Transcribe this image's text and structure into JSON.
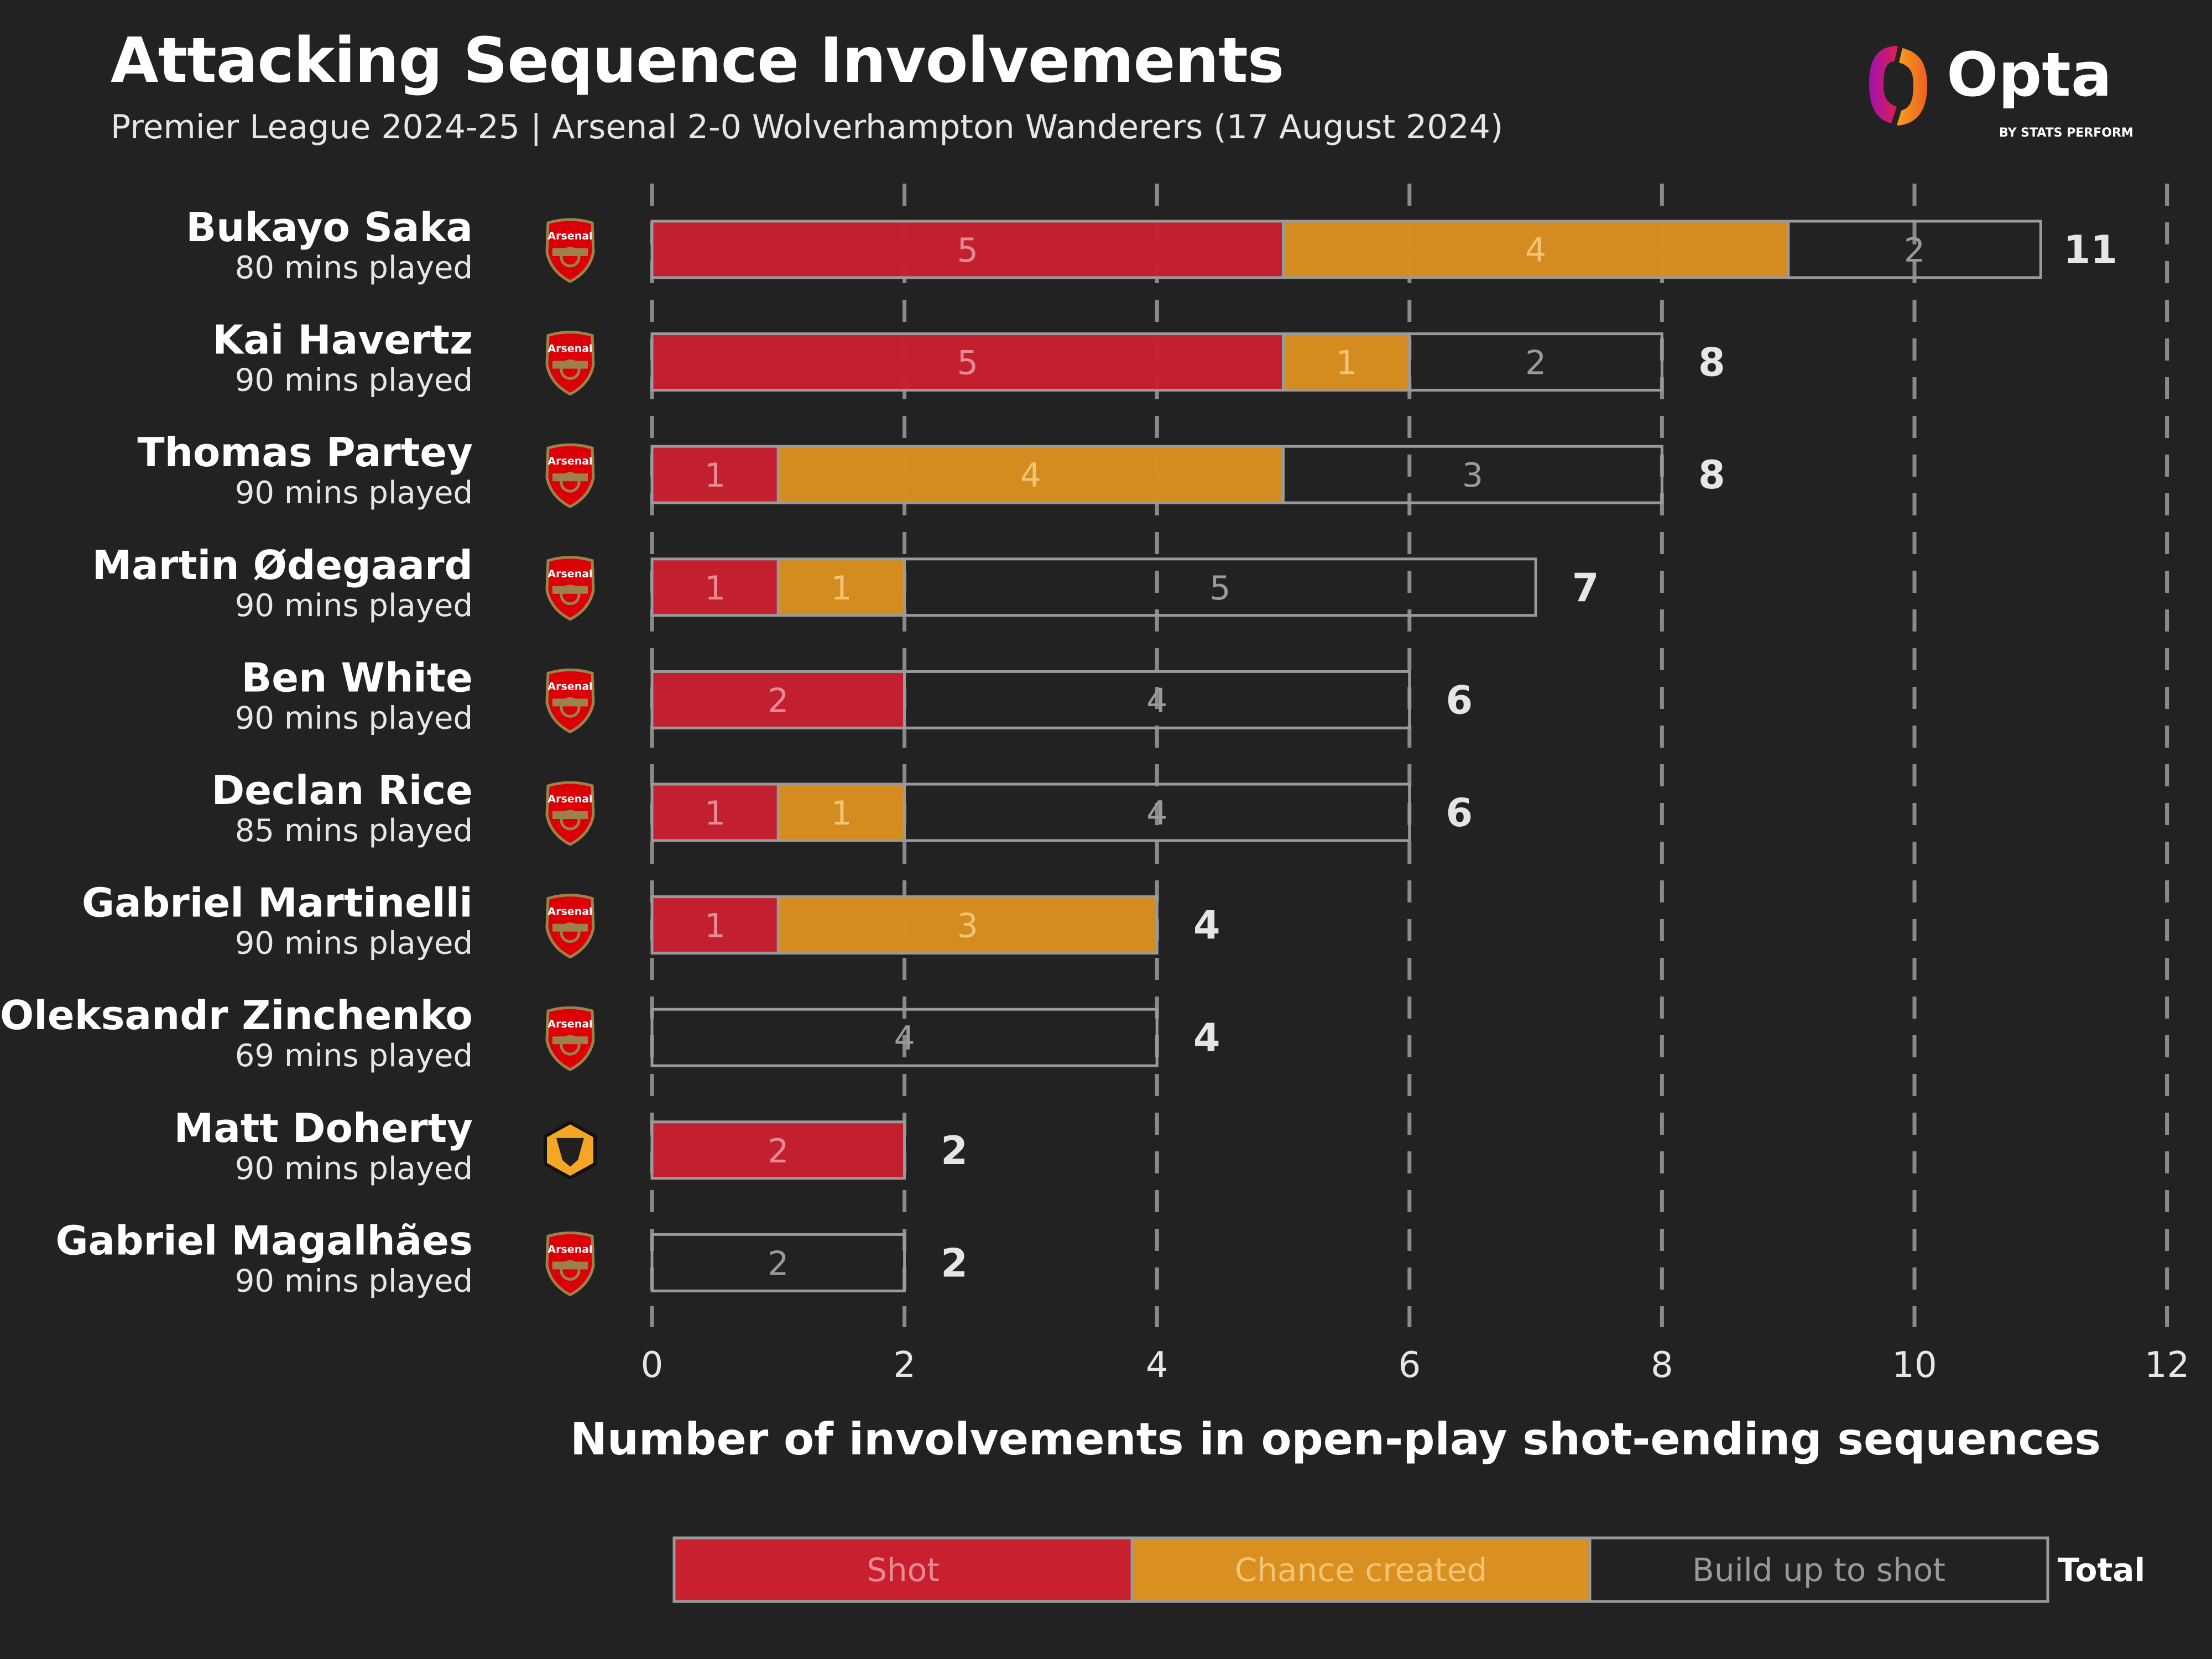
{
  "header": {
    "title": "Attacking Sequence Involvements",
    "subtitle": "Premier League 2024-25 | Arsenal 2-0 Wolverhampton Wanderers (17 August 2024)",
    "logo_text": "Opta",
    "logo_subtext": "BY STATS PERFORM"
  },
  "colors": {
    "shot": "#c8202f",
    "chance": "#da9020",
    "build": "#222222",
    "border": "#9a9a9a",
    "background": "#222222"
  },
  "chart_data": {
    "type": "bar",
    "stacked": true,
    "orientation": "horizontal",
    "xlabel": "Number of involvements in open-play shot-ending sequences",
    "xlim": [
      0,
      12
    ],
    "xticks": [
      0,
      2,
      4,
      6,
      8,
      10,
      12
    ],
    "grid": "vertical dashed",
    "legend_position": "bottom",
    "legend_total_label": "Total",
    "series_names": [
      "Shot",
      "Chance created",
      "Build up to shot"
    ],
    "players": [
      {
        "name": "Bukayo Saka",
        "mins": "80 mins played",
        "team": "arsenal",
        "shot": 5,
        "chance": 4,
        "build": 2,
        "total": 11
      },
      {
        "name": "Kai Havertz",
        "mins": "90 mins played",
        "team": "arsenal",
        "shot": 5,
        "chance": 1,
        "build": 2,
        "total": 8
      },
      {
        "name": "Thomas Partey",
        "mins": "90 mins played",
        "team": "arsenal",
        "shot": 1,
        "chance": 4,
        "build": 3,
        "total": 8
      },
      {
        "name": "Martin Ødegaard",
        "mins": "90 mins played",
        "team": "arsenal",
        "shot": 1,
        "chance": 1,
        "build": 5,
        "total": 7
      },
      {
        "name": "Ben White",
        "mins": "90 mins played",
        "team": "arsenal",
        "shot": 2,
        "chance": 0,
        "build": 4,
        "total": 6
      },
      {
        "name": "Declan Rice",
        "mins": "85 mins played",
        "team": "arsenal",
        "shot": 1,
        "chance": 1,
        "build": 4,
        "total": 6
      },
      {
        "name": "Gabriel Martinelli",
        "mins": "90 mins played",
        "team": "arsenal",
        "shot": 1,
        "chance": 3,
        "build": 0,
        "total": 4
      },
      {
        "name": "Oleksandr Zinchenko",
        "mins": "69 mins played",
        "team": "arsenal",
        "shot": 0,
        "chance": 0,
        "build": 4,
        "total": 4
      },
      {
        "name": "Matt Doherty",
        "mins": "90 mins played",
        "team": "wolves",
        "shot": 2,
        "chance": 0,
        "build": 0,
        "total": 2
      },
      {
        "name": "Gabriel Magalhães",
        "mins": "90 mins played",
        "team": "arsenal",
        "shot": 0,
        "chance": 0,
        "build": 2,
        "total": 2
      }
    ],
    "crest_text": {
      "arsenal": "Arsenal"
    }
  }
}
